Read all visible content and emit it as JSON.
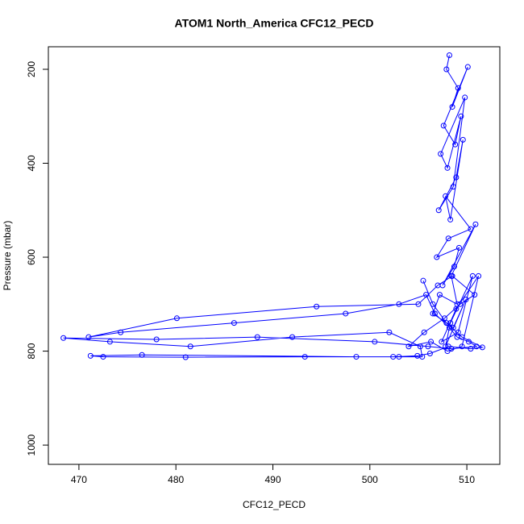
{
  "chart_data": {
    "type": "line",
    "title": "ATOM1 North_America CFC12_PECD",
    "x_label": "CFC12_PECD",
    "y_label": "Pressure (mbar)",
    "xlim": [
      466.85,
      513.4
    ],
    "ylim": [
      152,
      1041
    ],
    "y_reversed": true,
    "xticks": [
      470,
      480,
      490,
      500,
      510
    ],
    "yticks": [
      200,
      400,
      600,
      800,
      1000
    ],
    "grid": false,
    "markers": true,
    "series": [
      {
        "color": "#0000ff",
        "x": [
          508.2,
          507.9,
          509.1,
          508.5,
          510.1,
          507.6,
          508.8,
          509.4,
          508.0,
          507.3,
          509.8,
          508.6,
          507.1,
          508.9,
          509.6,
          508.3,
          507.8,
          510.4,
          508.1,
          506.9,
          509.2,
          508.7,
          507.5,
          510.9,
          508.4,
          509.0,
          507.2,
          506.5,
          508.6,
          509.9,
          507.8,
          508.3,
          510.6,
          509.1,
          507.4,
          508.9,
          511.2,
          509.5,
          508.0,
          506.3,
          504.0,
          505.6,
          507.7,
          509.3,
          510.8,
          508.5,
          507.0,
          505.0,
          494.5,
          480.1,
          471.0,
          474.3,
          486.0,
          497.5,
          503.0,
          505.8,
          506.7,
          508.2,
          509.0,
          510.2,
          511.0,
          508.4,
          506.0,
          500.5,
          488.4,
          478.0,
          468.4,
          473.2,
          481.5,
          492.0,
          502.0,
          505.2,
          505.4,
          503.0,
          493.3,
          481.0,
          472.5,
          471.2,
          476.5,
          498.6,
          502.4,
          504.9,
          506.2,
          508.1,
          510.4,
          511.6,
          509.5,
          507.9,
          506.5,
          505.5
        ],
        "values": [
          170,
          200,
          240,
          280,
          195,
          320,
          360,
          300,
          410,
          380,
          260,
          450,
          500,
          430,
          350,
          520,
          470,
          540,
          560,
          600,
          580,
          620,
          660,
          530,
          640,
          700,
          680,
          720,
          750,
          690,
          790,
          740,
          640,
          760,
          780,
          710,
          640,
          790,
          800,
          780,
          790,
          760,
          730,
          700,
          680,
          640,
          660,
          700,
          705,
          730,
          770,
          760,
          740,
          720,
          700,
          680,
          720,
          750,
          770,
          780,
          790,
          795,
          790,
          780,
          770,
          775,
          772,
          780,
          790,
          770,
          760,
          790,
          812,
          812,
          812,
          813,
          812,
          810,
          808,
          812,
          812,
          810,
          805,
          790,
          795,
          792,
          770,
          740,
          700,
          650
        ]
      }
    ]
  }
}
